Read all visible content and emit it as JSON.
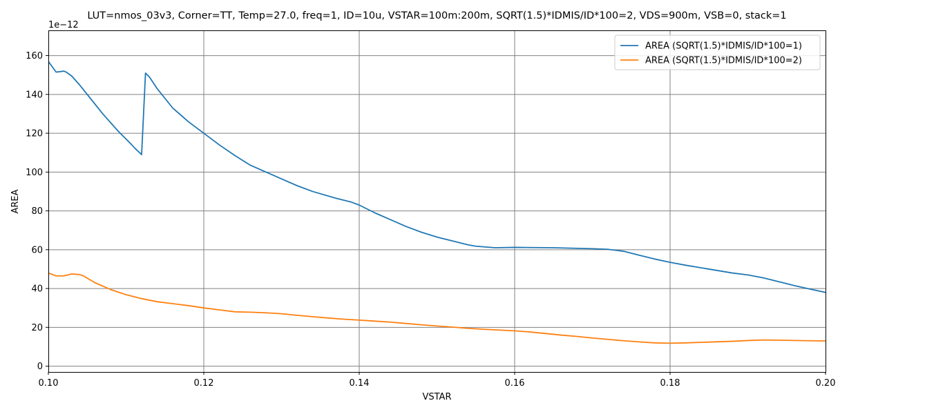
{
  "chart_data": {
    "type": "line",
    "title": "LUT=nmos_03v3, Corner=TT, Temp=27.0, freq=1, ID=10u, VSTAR=100m:200m, SQRT(1.5)*IDMIS/ID*100=2, VDS=900m, VSB=0, stack=1",
    "xlabel": "VSTAR",
    "ylabel": "AREA",
    "y_offset_text": "1e−12",
    "xlim": [
      0.1,
      0.2
    ],
    "ylim": [
      -3,
      173
    ],
    "x_ticks": [
      0.1,
      0.12,
      0.14,
      0.16,
      0.18,
      0.2
    ],
    "x_tick_labels": [
      "0.10",
      "0.12",
      "0.14",
      "0.16",
      "0.18",
      "0.20"
    ],
    "y_ticks": [
      0,
      20,
      40,
      60,
      80,
      100,
      120,
      140,
      160
    ],
    "y_tick_labels": [
      "0",
      "20",
      "40",
      "60",
      "80",
      "100",
      "120",
      "140",
      "160"
    ],
    "grid": true,
    "legend_position": "top-right",
    "series": [
      {
        "name": "AREA (SQRT(1.5)*IDMIS/ID*100=1)",
        "color": "#1f77b4",
        "x": [
          0.1,
          0.101,
          0.102,
          0.1023,
          0.103,
          0.104,
          0.105,
          0.107,
          0.109,
          0.1105,
          0.1112,
          0.112,
          0.1125,
          0.113,
          0.114,
          0.116,
          0.118,
          0.12,
          0.122,
          0.124,
          0.126,
          0.128,
          0.13,
          0.132,
          0.134,
          0.137,
          0.139,
          0.14,
          0.142,
          0.144,
          0.146,
          0.148,
          0.15,
          0.152,
          0.154,
          0.155,
          0.1575,
          0.16,
          0.165,
          0.17,
          0.172,
          0.174,
          0.176,
          0.178,
          0.18,
          0.182,
          0.185,
          0.188,
          0.19,
          0.192,
          0.194,
          0.196,
          0.198,
          0.2
        ],
        "values": [
          157,
          151.5,
          152,
          151.5,
          149.5,
          145,
          140,
          130,
          121,
          115,
          112,
          109,
          151,
          149,
          143,
          133,
          126,
          120,
          114,
          108.5,
          103.5,
          100,
          96.5,
          93,
          90,
          86.5,
          84.5,
          83,
          79,
          75.5,
          72,
          69,
          66.5,
          64.5,
          62.5,
          61.8,
          61,
          61.2,
          61,
          60.5,
          60.2,
          59.2,
          57.2,
          55.2,
          53.5,
          52,
          50,
          48,
          47,
          45.5,
          43.5,
          41.5,
          39.7,
          38
        ]
      },
      {
        "name": "AREA (SQRT(1.5)*IDMIS/ID*100=2)",
        "color": "#ff7f0e",
        "x": [
          0.1,
          0.101,
          0.102,
          0.103,
          0.104,
          0.1045,
          0.106,
          0.108,
          0.11,
          0.112,
          0.114,
          0.116,
          0.118,
          0.12,
          0.122,
          0.124,
          0.126,
          0.128,
          0.13,
          0.132,
          0.134,
          0.136,
          0.138,
          0.14,
          0.142,
          0.144,
          0.146,
          0.148,
          0.15,
          0.152,
          0.154,
          0.156,
          0.158,
          0.16,
          0.162,
          0.164,
          0.166,
          0.168,
          0.17,
          0.172,
          0.174,
          0.176,
          0.178,
          0.18,
          0.182,
          0.185,
          0.188,
          0.19,
          0.192,
          0.195,
          0.198,
          0.2
        ],
        "values": [
          48,
          46.5,
          46.5,
          47.5,
          47.2,
          46.5,
          43,
          39.5,
          36.8,
          34.8,
          33.2,
          32.2,
          31.2,
          30,
          29,
          28,
          27.8,
          27.5,
          27,
          26.2,
          25.5,
          24.8,
          24.2,
          23.7,
          23.2,
          22.7,
          22,
          21.3,
          20.7,
          20.1,
          19.5,
          19,
          18.6,
          18.2,
          17.6,
          16.8,
          16,
          15.3,
          14.5,
          13.8,
          13.1,
          12.5,
          12,
          11.8,
          12,
          12.4,
          12.8,
          13.2,
          13.5,
          13.3,
          13.1,
          13
        ]
      }
    ]
  }
}
